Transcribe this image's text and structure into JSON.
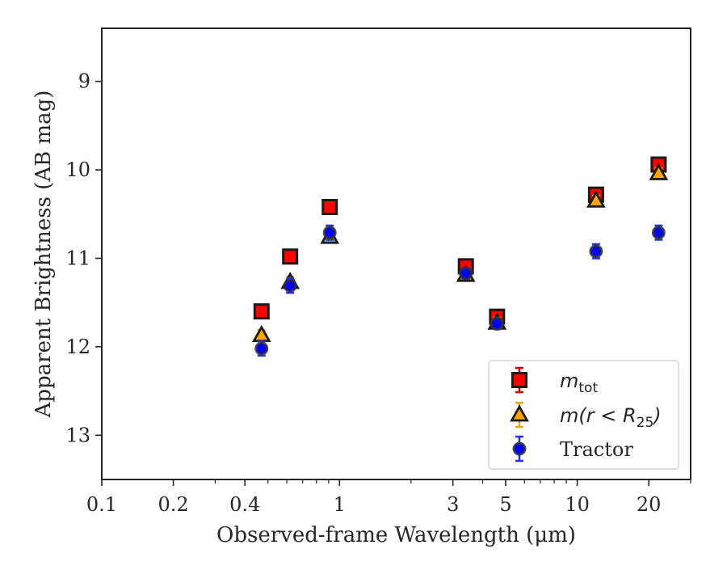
{
  "chart_data": {
    "type": "scatter",
    "title": "",
    "xlabel": "Observed-frame Wavelength (μm)",
    "ylabel": "Apparent Brightness (AB mag)",
    "xscale": "log",
    "xlim": [
      0.1,
      30
    ],
    "ylim": [
      13.5,
      8.4
    ],
    "y_inverted": true,
    "grid": false,
    "legend_position": "lower-right",
    "x_ticks": [
      {
        "value": 0.1,
        "label": "0.1"
      },
      {
        "value": 0.2,
        "label": "0.2"
      },
      {
        "value": 0.4,
        "label": "0.4"
      },
      {
        "value": 1,
        "label": "1"
      },
      {
        "value": 3,
        "label": "3"
      },
      {
        "value": 5,
        "label": "5"
      },
      {
        "value": 10,
        "label": "10"
      },
      {
        "value": 20,
        "label": "20"
      }
    ],
    "y_ticks": [
      {
        "value": 9,
        "label": "9"
      },
      {
        "value": 10,
        "label": "10"
      },
      {
        "value": 11,
        "label": "11"
      },
      {
        "value": 12,
        "label": "12"
      },
      {
        "value": 13,
        "label": "13"
      }
    ],
    "series": [
      {
        "key": "mtot",
        "marker": "square",
        "face_color": "#ff0000",
        "edge_color": "#1a1a1a",
        "err_color": "#cc0000",
        "points": [
          {
            "x": 0.47,
            "y": 11.6,
            "err": 0.07
          },
          {
            "x": 0.62,
            "y": 10.98,
            "err": 0.07
          },
          {
            "x": 0.91,
            "y": 10.42,
            "err": 0.07
          },
          {
            "x": 3.4,
            "y": 11.09,
            "err": 0.07
          },
          {
            "x": 4.6,
            "y": 11.66,
            "err": 0.07
          },
          {
            "x": 12.0,
            "y": 10.28,
            "err": 0.07
          },
          {
            "x": 22.0,
            "y": 9.94,
            "err": 0.07
          }
        ]
      },
      {
        "key": "mr25",
        "marker": "triangle",
        "face_color": "#ffa500",
        "edge_color": "#1a1a1a",
        "err_color": "#e6a817",
        "points": [
          {
            "x": 0.47,
            "y": 11.87,
            "err": 0.06
          },
          {
            "x": 0.62,
            "y": 11.27,
            "err": 0.06
          },
          {
            "x": 0.91,
            "y": 10.76,
            "err": 0.06
          },
          {
            "x": 3.4,
            "y": 11.19,
            "err": 0.06
          },
          {
            "x": 4.6,
            "y": 11.73,
            "err": 0.06
          },
          {
            "x": 12.0,
            "y": 10.35,
            "err": 0.06
          },
          {
            "x": 22.0,
            "y": 10.04,
            "err": 0.06
          }
        ]
      },
      {
        "key": "tractor",
        "marker": "circle",
        "face_color": "#0000ff",
        "edge_color": "#333333",
        "err_color": "#2233ee",
        "points": [
          {
            "x": 0.47,
            "y": 12.02,
            "err": 0.08
          },
          {
            "x": 0.62,
            "y": 11.31,
            "err": 0.08
          },
          {
            "x": 0.91,
            "y": 10.71,
            "err": 0.08
          },
          {
            "x": 3.4,
            "y": 11.17,
            "err": 0.06
          },
          {
            "x": 4.6,
            "y": 11.74,
            "err": 0.06
          },
          {
            "x": 12.0,
            "y": 10.92,
            "err": 0.08
          },
          {
            "x": 22.0,
            "y": 10.71,
            "err": 0.08
          }
        ]
      }
    ],
    "legend": [
      {
        "series": "mtot",
        "main": "m",
        "sub": "tot",
        "suffix": ""
      },
      {
        "series": "mr25",
        "main": "m(r < R",
        "sub": "25",
        "suffix": ")"
      },
      {
        "series": "tractor",
        "main": "Tractor",
        "sub": "",
        "suffix": ""
      }
    ]
  }
}
